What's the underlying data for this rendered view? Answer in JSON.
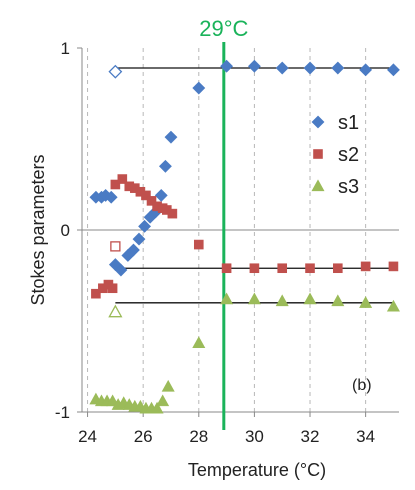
{
  "chart_data": {
    "type": "scatter",
    "title": "",
    "xlabel": "Temperature (°C)",
    "ylabel": "Stokes parameters",
    "xlim": [
      23.8,
      35.2
    ],
    "ylim": [
      -1,
      1
    ],
    "x_ticks": [
      24,
      26,
      28,
      30,
      32,
      34
    ],
    "y_ticks": [
      {
        "value": 1,
        "label": "1"
      },
      {
        "value": 0,
        "label": "0"
      },
      {
        "value": -1,
        "label": "-1"
      }
    ],
    "grid": "vertical dashed at each x tick",
    "legend_position": "right",
    "panel_label": "(b)",
    "vertical_marker": {
      "x": 28.9,
      "label": "29°C",
      "color": "#1ab35a"
    },
    "series": [
      {
        "name": "s1",
        "marker": "diamond",
        "color": "#4a7bc4",
        "points": [
          [
            24.3,
            0.18
          ],
          [
            24.5,
            0.18
          ],
          [
            24.65,
            0.19
          ],
          [
            24.85,
            0.18
          ],
          [
            25.0,
            -0.19
          ],
          [
            25.2,
            -0.22
          ],
          [
            25.45,
            -0.14
          ],
          [
            25.65,
            -0.11
          ],
          [
            25.85,
            -0.05
          ],
          [
            26.05,
            0.02
          ],
          [
            26.25,
            0.07
          ],
          [
            26.45,
            0.1
          ],
          [
            26.65,
            0.19
          ],
          [
            26.8,
            0.35
          ],
          [
            27.0,
            0.51
          ],
          [
            28.0,
            0.78
          ],
          [
            29.0,
            0.9
          ],
          [
            30.0,
            0.9
          ],
          [
            31.0,
            0.89
          ],
          [
            32.0,
            0.89
          ],
          [
            33.0,
            0.89
          ],
          [
            34.0,
            0.88
          ],
          [
            35.0,
            0.88
          ]
        ],
        "open_points": [
          [
            25.0,
            0.87
          ]
        ],
        "fit": {
          "from": 25.0,
          "to": 35.0,
          "value": 0.89
        }
      },
      {
        "name": "s2",
        "marker": "square",
        "color": "#c0504d",
        "points": [
          [
            24.3,
            -0.35
          ],
          [
            24.55,
            -0.32
          ],
          [
            24.75,
            -0.3
          ],
          [
            24.9,
            -0.32
          ],
          [
            25.0,
            0.25
          ],
          [
            25.25,
            0.28
          ],
          [
            25.5,
            0.24
          ],
          [
            25.7,
            0.23
          ],
          [
            25.9,
            0.21
          ],
          [
            26.1,
            0.19
          ],
          [
            26.3,
            0.16
          ],
          [
            26.5,
            0.13
          ],
          [
            26.7,
            0.12
          ],
          [
            26.85,
            0.11
          ],
          [
            27.05,
            0.09
          ],
          [
            28.0,
            -0.08
          ],
          [
            29.0,
            -0.21
          ],
          [
            30.0,
            -0.21
          ],
          [
            31.0,
            -0.21
          ],
          [
            32.0,
            -0.21
          ],
          [
            33.0,
            -0.21
          ],
          [
            34.0,
            -0.2
          ],
          [
            35.0,
            -0.2
          ]
        ],
        "open_points": [
          [
            25.0,
            -0.09
          ]
        ],
        "fit": {
          "from": 25.0,
          "to": 35.0,
          "value": -0.21
        }
      },
      {
        "name": "s3",
        "marker": "triangle",
        "color": "#9bbb59",
        "points": [
          [
            24.3,
            -0.93
          ],
          [
            24.5,
            -0.94
          ],
          [
            24.7,
            -0.94
          ],
          [
            24.9,
            -0.94
          ],
          [
            25.1,
            -0.96
          ],
          [
            25.3,
            -0.95
          ],
          [
            25.5,
            -0.96
          ],
          [
            25.7,
            -0.97
          ],
          [
            25.9,
            -0.97
          ],
          [
            26.1,
            -0.98
          ],
          [
            26.3,
            -0.98
          ],
          [
            26.5,
            -0.98
          ],
          [
            26.7,
            -0.94
          ],
          [
            26.9,
            -0.86
          ],
          [
            28.0,
            -0.62
          ],
          [
            29.0,
            -0.38
          ],
          [
            30.0,
            -0.38
          ],
          [
            31.0,
            -0.39
          ],
          [
            32.0,
            -0.38
          ],
          [
            33.0,
            -0.39
          ],
          [
            34.0,
            -0.4
          ],
          [
            35.0,
            -0.42
          ]
        ],
        "open_points": [
          [
            25.0,
            -0.45
          ]
        ],
        "fit": {
          "from": 25.0,
          "to": 35.0,
          "value": -0.4
        }
      }
    ]
  }
}
